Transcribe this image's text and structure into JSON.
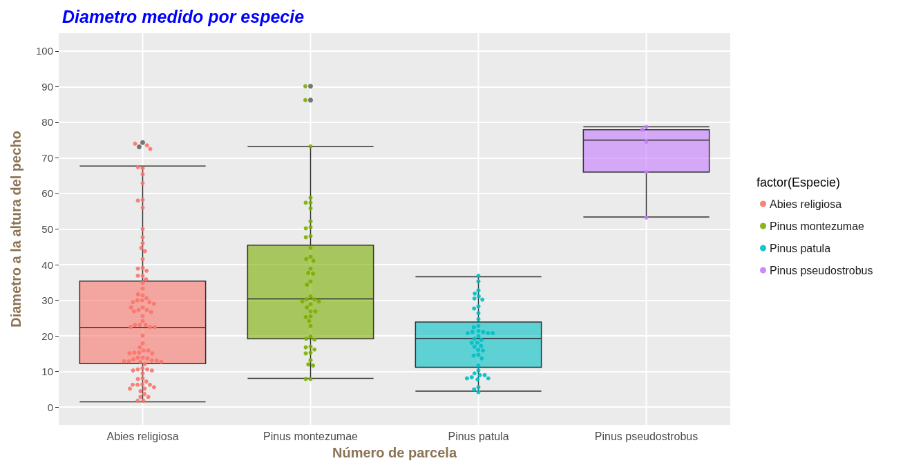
{
  "chart_data": {
    "type": "box",
    "title": "Diametro medido por especie",
    "xlabel": "Número de parcela",
    "ylabel": "Diametro a la altura del pecho",
    "legend_title": "factor(Especie)",
    "categories": [
      "Abies religiosa",
      "Pinus montezumae",
      "Pinus patula",
      "Pinus pseudostrobus"
    ],
    "colors": [
      "#f8766d",
      "#7cae00",
      "#00bfc4",
      "#c77cff"
    ],
    "boxes": [
      {
        "low": 1.5,
        "q1": 12.2,
        "median": 22.4,
        "q3": 35.4,
        "high": 67.7,
        "outliers": [
          74.3,
          73.1
        ]
      },
      {
        "low": 8.1,
        "q1": 19.2,
        "median": 30.4,
        "q3": 45.5,
        "high": 73.2,
        "outliers": [
          90.1,
          86.2
        ]
      },
      {
        "low": 4.5,
        "q1": 11.2,
        "median": 19.3,
        "q3": 23.9,
        "high": 36.6
      },
      {
        "low": 53.4,
        "q1": 66.0,
        "median": 75.0,
        "q3": 77.9,
        "high": 78.7
      }
    ],
    "series": [
      {
        "type": "scatter",
        "name": "Abies religiosa",
        "color": "#f8766d",
        "x": [
          "Abies religiosa",
          "Abies religiosa",
          "Abies religiosa",
          "Abies religiosa",
          "Abies religiosa",
          "Abies religiosa",
          "Abies religiosa",
          "Abies religiosa",
          "Abies religiosa",
          "Abies religiosa",
          "Abies religiosa",
          "Abies religiosa",
          "Abies religiosa",
          "Abies religiosa",
          "Abies religiosa",
          "Abies religiosa",
          "Abies religiosa",
          "Abies religiosa",
          "Abies religiosa",
          "Abies religiosa",
          "Abies religiosa",
          "Abies religiosa",
          "Abies religiosa",
          "Abies religiosa",
          "Abies religiosa",
          "Abies religiosa",
          "Abies religiosa",
          "Abies religiosa",
          "Abies religiosa",
          "Abies religiosa",
          "Abies religiosa",
          "Abies religiosa",
          "Abies religiosa",
          "Abies religiosa",
          "Abies religiosa",
          "Abies religiosa",
          "Abies religiosa",
          "Abies religiosa",
          "Abies religiosa",
          "Abies religiosa",
          "Abies religiosa",
          "Abies religiosa",
          "Abies religiosa",
          "Abies religiosa",
          "Abies religiosa",
          "Abies religiosa",
          "Abies religiosa",
          "Abies religiosa",
          "Abies religiosa",
          "Abies religiosa",
          "Abies religiosa",
          "Abies religiosa",
          "Abies religiosa",
          "Abies religiosa",
          "Abies religiosa",
          "Abies religiosa",
          "Abies religiosa",
          "Abies religiosa",
          "Abies religiosa",
          "Abies religiosa",
          "Abies religiosa",
          "Abies religiosa",
          "Abies religiosa",
          "Abies religiosa",
          "Abies religiosa",
          "Abies religiosa",
          "Abies religiosa",
          "Abies religiosa",
          "Abies religiosa",
          "Abies religiosa",
          "Abies religiosa",
          "Abies religiosa",
          "Abies religiosa",
          "Abies religiosa",
          "Abies religiosa",
          "Abies religiosa",
          "Abies religiosa",
          "Abies religiosa",
          "Abies religiosa",
          "Abies religiosa",
          "Abies religiosa",
          "Abies religiosa",
          "Abies religiosa",
          "Abies religiosa",
          "Abies religiosa",
          "Abies religiosa",
          "Abies religiosa",
          "Abies religiosa"
        ],
        "values": [
          73.5,
          72.5,
          74.0,
          67.1,
          67.4,
          65.4,
          62.9,
          58.2,
          58.0,
          56.0,
          50.0,
          47.7,
          46.0,
          44.7,
          43.8,
          41.6,
          39.1,
          38.9,
          38.3,
          36.9,
          36.9,
          35.9,
          34.9,
          33.3,
          31.4,
          31.7,
          30.6,
          30.0,
          30.0,
          29.5,
          29.5,
          29.0,
          28.0,
          27.3,
          27.3,
          26.9,
          26.7,
          28.0,
          25.6,
          24.2,
          23.1,
          23.1,
          23.1,
          22.5,
          22.5,
          22.5,
          20.1,
          17.9,
          16.8,
          15.9,
          15.9,
          15.3,
          15.3,
          15.1,
          15.1,
          13.9,
          13.9,
          13.7,
          13.4,
          13.1,
          13.1,
          12.9,
          12.9,
          12.7,
          12.7,
          12.1,
          10.9,
          10.6,
          10.6,
          10.3,
          10.3,
          9.5,
          8.1,
          7.9,
          7.2,
          6.4,
          6.3,
          6.3,
          6.3,
          5.6,
          5.2,
          5.2,
          4.5,
          3.7,
          2.9,
          2.9,
          1.8,
          1.8
        ]
      },
      {
        "type": "scatter",
        "name": "Pinus montezumae",
        "color": "#7cae00",
        "x": [
          "Pinus montezumae",
          "Pinus montezumae",
          "Pinus montezumae",
          "Pinus montezumae",
          "Pinus montezumae",
          "Pinus montezumae",
          "Pinus montezumae",
          "Pinus montezumae",
          "Pinus montezumae",
          "Pinus montezumae",
          "Pinus montezumae",
          "Pinus montezumae",
          "Pinus montezumae",
          "Pinus montezumae",
          "Pinus montezumae",
          "Pinus montezumae",
          "Pinus montezumae",
          "Pinus montezumae",
          "Pinus montezumae",
          "Pinus montezumae",
          "Pinus montezumae",
          "Pinus montezumae",
          "Pinus montezumae",
          "Pinus montezumae",
          "Pinus montezumae",
          "Pinus montezumae",
          "Pinus montezumae",
          "Pinus montezumae",
          "Pinus montezumae",
          "Pinus montezumae",
          "Pinus montezumae",
          "Pinus montezumae",
          "Pinus montezumae",
          "Pinus montezumae",
          "Pinus montezumae",
          "Pinus montezumae",
          "Pinus montezumae",
          "Pinus montezumae",
          "Pinus montezumae",
          "Pinus montezumae",
          "Pinus montezumae",
          "Pinus montezumae",
          "Pinus montezumae",
          "Pinus montezumae",
          "Pinus montezumae",
          "Pinus montezumae",
          "Pinus montezumae"
        ],
        "values": [
          90.1,
          86.2,
          73.2,
          58.8,
          57.4,
          57.4,
          55.8,
          52.2,
          50.5,
          50.2,
          48.0,
          47.7,
          44.7,
          42.2,
          41.6,
          41.1,
          38.9,
          37.7,
          37.5,
          35.3,
          34.4,
          31.1,
          30.3,
          30.3,
          29.7,
          29.7,
          28.9,
          28.0,
          26.9,
          26.9,
          25.5,
          25.3,
          24.2,
          22.8,
          19.8,
          19.2,
          19.0,
          17.0,
          16.8,
          16.2,
          15.3,
          15.1,
          13.2,
          12.0,
          11.7,
          7.9,
          7.9
        ]
      },
      {
        "type": "scatter",
        "name": "Pinus patula",
        "color": "#00bfc4",
        "x": [
          "Pinus patula",
          "Pinus patula",
          "Pinus patula",
          "Pinus patula",
          "Pinus patula",
          "Pinus patula",
          "Pinus patula",
          "Pinus patula",
          "Pinus patula",
          "Pinus patula",
          "Pinus patula",
          "Pinus patula",
          "Pinus patula",
          "Pinus patula",
          "Pinus patula",
          "Pinus patula",
          "Pinus patula",
          "Pinus patula",
          "Pinus patula",
          "Pinus patula",
          "Pinus patula",
          "Pinus patula",
          "Pinus patula",
          "Pinus patula",
          "Pinus patula",
          "Pinus patula",
          "Pinus patula",
          "Pinus patula",
          "Pinus patula",
          "Pinus patula",
          "Pinus patula",
          "Pinus patula",
          "Pinus patula",
          "Pinus patula",
          "Pinus patula",
          "Pinus patula",
          "Pinus patula",
          "Pinus patula",
          "Pinus patula",
          "Pinus patula",
          "Pinus patula",
          "Pinus patula",
          "Pinus patula"
        ],
        "values": [
          36.9,
          35.3,
          32.8,
          31.9,
          31.1,
          30.5,
          30.2,
          28.3,
          27.7,
          26.4,
          24.7,
          22.8,
          22.4,
          21.4,
          21.1,
          21.1,
          20.8,
          20.8,
          20.8,
          20.0,
          19.2,
          18.9,
          18.1,
          18.1,
          17.2,
          17.0,
          16.1,
          15.9,
          14.7,
          14.5,
          13.7,
          11.7,
          10.3,
          9.5,
          9.0,
          9.0,
          8.4,
          8.1,
          8.1,
          7.8,
          5.6,
          5.0,
          4.2
        ]
      },
      {
        "type": "scatter",
        "name": "Pinus pseudostrobus",
        "color": "#c77cff",
        "x": [
          "Pinus pseudostrobus",
          "Pinus pseudostrobus",
          "Pinus pseudostrobus",
          "Pinus pseudostrobus",
          "Pinus pseudostrobus"
        ],
        "values": [
          78.7,
          77.9,
          74.5,
          66.0,
          53.2
        ]
      }
    ],
    "ylim": [
      -5,
      105
    ],
    "yticks": [
      0,
      10,
      20,
      30,
      40,
      50,
      60,
      70,
      80,
      90,
      100
    ],
    "grid": true,
    "legend": "right",
    "marker": "circle"
  }
}
